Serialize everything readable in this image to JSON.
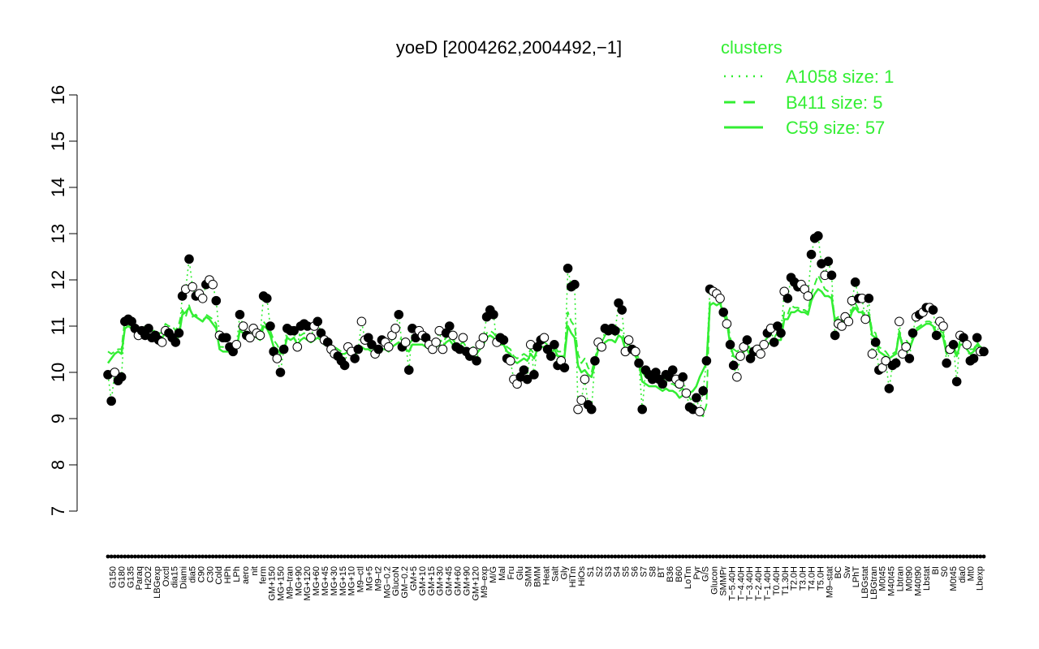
{
  "chart_data": {
    "type": "line",
    "title": "yoeD [2004262,2004492,−1]",
    "xlabel": "",
    "ylabel": "",
    "ylim": [
      7,
      16
    ],
    "y_ticks": [
      "7",
      "8",
      "9",
      "10",
      "11",
      "12",
      "13",
      "14",
      "15",
      "16"
    ],
    "legend": {
      "title": "clusters",
      "placement": "top-right",
      "entries": [
        {
          "label": "A1058 size: 1",
          "style": "dotted"
        },
        {
          "label": "B411 size: 5",
          "style": "dashed"
        },
        {
          "label": "C59 size: 57",
          "style": "solid"
        }
      ]
    },
    "colors": {
      "series": "#33ee33",
      "axis": "#000000",
      "point_fill_dark": "#000000",
      "point_fill_light": "#ffffff"
    },
    "x_tick_labels": [
      "G150",
      "G180",
      "G135",
      "Paraq",
      "H2O2",
      "LBGexp",
      "Oxctl",
      "dia15",
      "Diami",
      "dia5",
      "C90",
      "C30",
      "Cold",
      "HPh",
      "LPh",
      "aero",
      "nit",
      "ferm",
      "GM+150",
      "MG+150",
      "M9–tran",
      "MG+90",
      "MG+120",
      "MG+60",
      "MG+45",
      "MG+30",
      "MG+15",
      "MG+10",
      "M9–ctl",
      "MG+5",
      "M9–t2",
      "MG−0.2",
      "GlucoN",
      "GM−0.2",
      "GM+5",
      "GM+10",
      "GM+15",
      "GM+30",
      "GM+45",
      "GM+60",
      "GM+90",
      "GM+120",
      "M9–exp",
      "M/G",
      "Mal",
      "Fru",
      "Glu",
      "SMM",
      "BMM",
      "Heat",
      "Salt",
      "Gly",
      "HiTm",
      "HiOs",
      "S1",
      "S2",
      "S3",
      "S4",
      "S5",
      "S6",
      "S7",
      "S8",
      "BT",
      "B36",
      "B60",
      "LoTm",
      "Pyr",
      "G/S",
      "Glucon",
      "SMMPr",
      "T−5.40H",
      "T−4.40H",
      "T−3.40H",
      "T−2.40H",
      "T−1.40H",
      "T0.40H",
      "T1.30H",
      "T2.0H",
      "T3.0H",
      "T4.0H",
      "T5.0H",
      "M9–stat",
      "BC",
      "Sw",
      "LPhT",
      "LBGstat",
      "LBGtran",
      "M0t45",
      "M40t45",
      "Lbtran",
      "M0t90",
      "M40t90",
      "Lbstat",
      "BI",
      "S0",
      "M0t45",
      "dia0",
      "Mt0",
      "Lbexp"
    ],
    "series": [
      {
        "name": "",
        "values": [
          9.95,
          9.38,
          10.0,
          9.82,
          9.9,
          11.1,
          11.15,
          11.1,
          10.95,
          10.8,
          10.9,
          10.8,
          10.95,
          10.75,
          10.8,
          10.7,
          10.65,
          10.9,
          10.85,
          10.75,
          10.65,
          10.85,
          11.65,
          11.8,
          12.45,
          11.85,
          11.65,
          11.7,
          11.6,
          11.9,
          12.0,
          11.9,
          11.55,
          10.8,
          10.75,
          10.75,
          10.55,
          10.45,
          10.6,
          11.25,
          11.0,
          10.8,
          10.75,
          10.95,
          10.85,
          10.8,
          11.65,
          11.6,
          11.0,
          10.45,
          10.3,
          10.0,
          10.5,
          10.95,
          10.9,
          10.9,
          10.55,
          11.0,
          11.05,
          11.0,
          10.75,
          11.0,
          11.1,
          10.85,
          10.7,
          10.65,
          10.5,
          10.4,
          10.35,
          10.25,
          10.15,
          10.55,
          10.45,
          10.3,
          10.5,
          11.1,
          10.7,
          10.75,
          10.6,
          10.4,
          10.5,
          10.7,
          10.65,
          10.55,
          10.8,
          10.95,
          11.25,
          10.55,
          10.65,
          10.05,
          10.95,
          10.75,
          10.9,
          10.8,
          10.75,
          10.6,
          10.5,
          10.65,
          10.9,
          10.5,
          10.85,
          11.0,
          10.8,
          10.55,
          10.5,
          10.75,
          10.45,
          10.35,
          10.45,
          10.25,
          10.6,
          10.75,
          11.2,
          11.35,
          11.25,
          10.65,
          10.75,
          10.7,
          10.3,
          10.25,
          9.85,
          9.75,
          9.9,
          10.05,
          9.85,
          10.6,
          9.95,
          10.55,
          10.7,
          10.75,
          10.5,
          10.35,
          10.6,
          10.15,
          10.25,
          10.1,
          12.25,
          11.85,
          11.9,
          9.2,
          9.4,
          9.85,
          9.3,
          9.2,
          10.25,
          10.65,
          10.55,
          10.95,
          10.9,
          10.95,
          10.9,
          11.5,
          11.35,
          10.45,
          10.7,
          10.5,
          10.45,
          10.2,
          9.2,
          10.05,
          9.95,
          9.85,
          10.0,
          9.85,
          9.75,
          9.95,
          9.9,
          10.05,
          9.85,
          9.75,
          9.9,
          9.55,
          9.25,
          9.2,
          9.45,
          9.15,
          9.6,
          10.25,
          11.8,
          11.75,
          11.7,
          11.6,
          11.3,
          11.05,
          10.6,
          10.15,
          9.9,
          10.35,
          10.55,
          10.7,
          10.3,
          10.45,
          10.5,
          10.4,
          10.6,
          10.85,
          10.95,
          10.65,
          11.0,
          10.85,
          11.75,
          11.6,
          12.05,
          11.95,
          11.85,
          11.9,
          11.8,
          11.65,
          12.55,
          12.9,
          12.95,
          12.35,
          12.1,
          12.4,
          12.1,
          10.8,
          11.05,
          11.0,
          11.2,
          11.1,
          11.55,
          11.95,
          11.6,
          11.6,
          11.15,
          11.6,
          10.4,
          10.65,
          10.05,
          10.1,
          10.25,
          9.65,
          10.15,
          10.2,
          11.1,
          10.4,
          10.55,
          10.3,
          10.85,
          11.2,
          11.25,
          11.3,
          11.4,
          11.4,
          11.35,
          10.8,
          11.1,
          11.0,
          10.2,
          10.5,
          10.6,
          9.8,
          10.8,
          10.75,
          10.6,
          10.25,
          10.3,
          10.75,
          10.45,
          10.45
        ]
      },
      {
        "name": "",
        "values": [
          10.45,
          10.4,
          10.45,
          10.5,
          10.5,
          11.15,
          11.2,
          11.1,
          11.0,
          10.95,
          10.9,
          11.0,
          10.95,
          10.9,
          10.9,
          10.85,
          10.85,
          11.05,
          11.0,
          11.0,
          10.9,
          11.05,
          11.35,
          11.2,
          11.45,
          11.2,
          11.25,
          11.15,
          11.1,
          11.25,
          11.2,
          11.15,
          11.05,
          10.55,
          10.55,
          10.5,
          10.55,
          10.5,
          10.55,
          10.95,
          10.95,
          10.85,
          10.85,
          10.85,
          10.85,
          10.8,
          11.1,
          11.0,
          10.9,
          10.7,
          10.6,
          10.45,
          10.5,
          10.8,
          10.85,
          10.9,
          10.8,
          10.8,
          10.85,
          10.8,
          10.75,
          10.8,
          10.85,
          10.8,
          10.75,
          10.7,
          10.6,
          10.55,
          10.5,
          10.45,
          10.5,
          10.5,
          10.55,
          10.5,
          10.55,
          10.6,
          10.65,
          10.6,
          10.55,
          10.5,
          10.6,
          10.65,
          10.6,
          10.6,
          10.7,
          10.75,
          10.75,
          10.7,
          10.6,
          10.6,
          10.7,
          10.75,
          10.75,
          10.7,
          10.7,
          10.6,
          10.6,
          10.65,
          10.7,
          10.65,
          10.75,
          10.8,
          10.7,
          10.6,
          10.6,
          10.65,
          10.55,
          10.5,
          10.55,
          10.5,
          10.6,
          10.7,
          10.85,
          10.9,
          10.85,
          10.75,
          10.7,
          10.7,
          10.55,
          10.5,
          10.35,
          10.3,
          10.35,
          10.4,
          10.35,
          10.5,
          10.4,
          10.6,
          10.65,
          10.65,
          10.6,
          10.5,
          10.6,
          10.45,
          10.45,
          10.45,
          11.3,
          11.1,
          11.0,
          10.4,
          10.2,
          10.3,
          10.1,
          10.0,
          10.3,
          10.6,
          10.65,
          10.8,
          10.85,
          10.85,
          10.8,
          10.95,
          10.9,
          10.6,
          10.6,
          10.55,
          10.45,
          10.3,
          10.0,
          9.9,
          9.85,
          9.85,
          9.8,
          9.8,
          9.75,
          9.8,
          9.75,
          9.75,
          9.7,
          9.6,
          9.65,
          9.55,
          9.45,
          9.35,
          9.15,
          9.1,
          9.05,
          9.3,
          11.55,
          11.5,
          11.45,
          11.5,
          11.3,
          11.2,
          10.75,
          10.5,
          10.45,
          10.5,
          10.6,
          10.65,
          10.5,
          10.5,
          10.55,
          10.6,
          10.65,
          10.75,
          10.8,
          10.75,
          10.85,
          10.85,
          11.3,
          11.25,
          11.45,
          11.4,
          11.4,
          11.35,
          11.35,
          11.3,
          11.7,
          11.9,
          12.1,
          11.95,
          11.8,
          11.75,
          11.7,
          11.15,
          11.2,
          11.15,
          11.2,
          11.2,
          11.35,
          11.5,
          11.35,
          11.35,
          11.2,
          11.3,
          10.9,
          10.85,
          10.55,
          10.5,
          10.45,
          10.35,
          10.4,
          10.45,
          10.9,
          10.6,
          10.7,
          10.6,
          10.8,
          10.95,
          11.0,
          11.05,
          11.1,
          11.1,
          11.05,
          10.85,
          10.9,
          10.85,
          10.5,
          10.6,
          10.6,
          10.4,
          10.7,
          10.7,
          10.6,
          10.5,
          10.5,
          10.65,
          10.55,
          10.55
        ]
      },
      {
        "name": "",
        "values": [
          10.2,
          10.3,
          10.4,
          10.45,
          10.4,
          10.95,
          11.0,
          10.95,
          10.9,
          10.85,
          10.85,
          10.8,
          10.75,
          10.8,
          10.7,
          10.7,
          10.75,
          10.85,
          10.8,
          10.75,
          10.65,
          10.8,
          11.25,
          11.3,
          11.4,
          11.25,
          11.2,
          11.15,
          11.1,
          11.2,
          11.15,
          11.05,
          10.95,
          10.5,
          10.45,
          10.45,
          10.45,
          10.45,
          10.5,
          10.9,
          10.85,
          10.75,
          10.75,
          10.8,
          10.75,
          10.7,
          11.0,
          10.95,
          10.8,
          10.55,
          10.5,
          10.4,
          10.45,
          10.75,
          10.7,
          10.75,
          10.6,
          10.7,
          10.75,
          10.7,
          10.65,
          10.7,
          10.75,
          10.7,
          10.6,
          10.6,
          10.5,
          10.45,
          10.4,
          10.4,
          10.4,
          10.45,
          10.45,
          10.4,
          10.45,
          10.55,
          10.5,
          10.5,
          10.45,
          10.4,
          10.45,
          10.5,
          10.5,
          10.45,
          10.55,
          10.6,
          10.65,
          10.55,
          10.5,
          10.45,
          10.6,
          10.6,
          10.6,
          10.6,
          10.55,
          10.5,
          10.5,
          10.55,
          10.6,
          10.55,
          10.65,
          10.7,
          10.6,
          10.5,
          10.5,
          10.55,
          10.45,
          10.4,
          10.45,
          10.4,
          10.5,
          10.6,
          10.75,
          10.8,
          10.75,
          10.6,
          10.6,
          10.6,
          10.45,
          10.4,
          10.25,
          10.2,
          10.25,
          10.3,
          10.25,
          10.4,
          10.3,
          10.5,
          10.55,
          10.55,
          10.5,
          10.4,
          10.5,
          10.35,
          10.35,
          10.35,
          11.0,
          10.85,
          10.75,
          10.15,
          10.0,
          10.05,
          9.95,
          9.9,
          10.2,
          10.5,
          10.55,
          10.65,
          10.7,
          10.7,
          10.65,
          10.8,
          10.75,
          10.5,
          10.5,
          10.45,
          10.35,
          10.2,
          9.8,
          9.75,
          9.7,
          9.7,
          9.7,
          9.65,
          9.6,
          9.65,
          9.6,
          9.6,
          9.55,
          9.45,
          9.5,
          9.55,
          9.55,
          9.6,
          9.7,
          9.9,
          10.05,
          10.2,
          11.45,
          11.5,
          11.45,
          11.5,
          11.25,
          11.1,
          10.6,
          10.35,
          10.3,
          10.35,
          10.45,
          10.5,
          10.35,
          10.4,
          10.45,
          10.5,
          10.55,
          10.6,
          10.65,
          10.6,
          10.7,
          10.7,
          11.15,
          11.15,
          11.3,
          11.3,
          11.35,
          11.3,
          11.3,
          11.25,
          11.55,
          11.7,
          11.8,
          11.75,
          11.65,
          11.65,
          11.6,
          11.1,
          11.15,
          11.1,
          11.15,
          11.1,
          11.3,
          11.4,
          11.3,
          11.3,
          11.15,
          11.25,
          10.8,
          10.75,
          10.45,
          10.4,
          10.35,
          10.3,
          10.35,
          10.4,
          10.85,
          10.55,
          10.6,
          10.5,
          10.7,
          10.9,
          10.95,
          11.0,
          11.05,
          11.05,
          11.0,
          10.8,
          10.85,
          10.75,
          10.4,
          10.5,
          10.5,
          10.35,
          10.6,
          10.6,
          10.5,
          10.4,
          10.45,
          10.6,
          10.5,
          10.5
        ]
      }
    ]
  }
}
